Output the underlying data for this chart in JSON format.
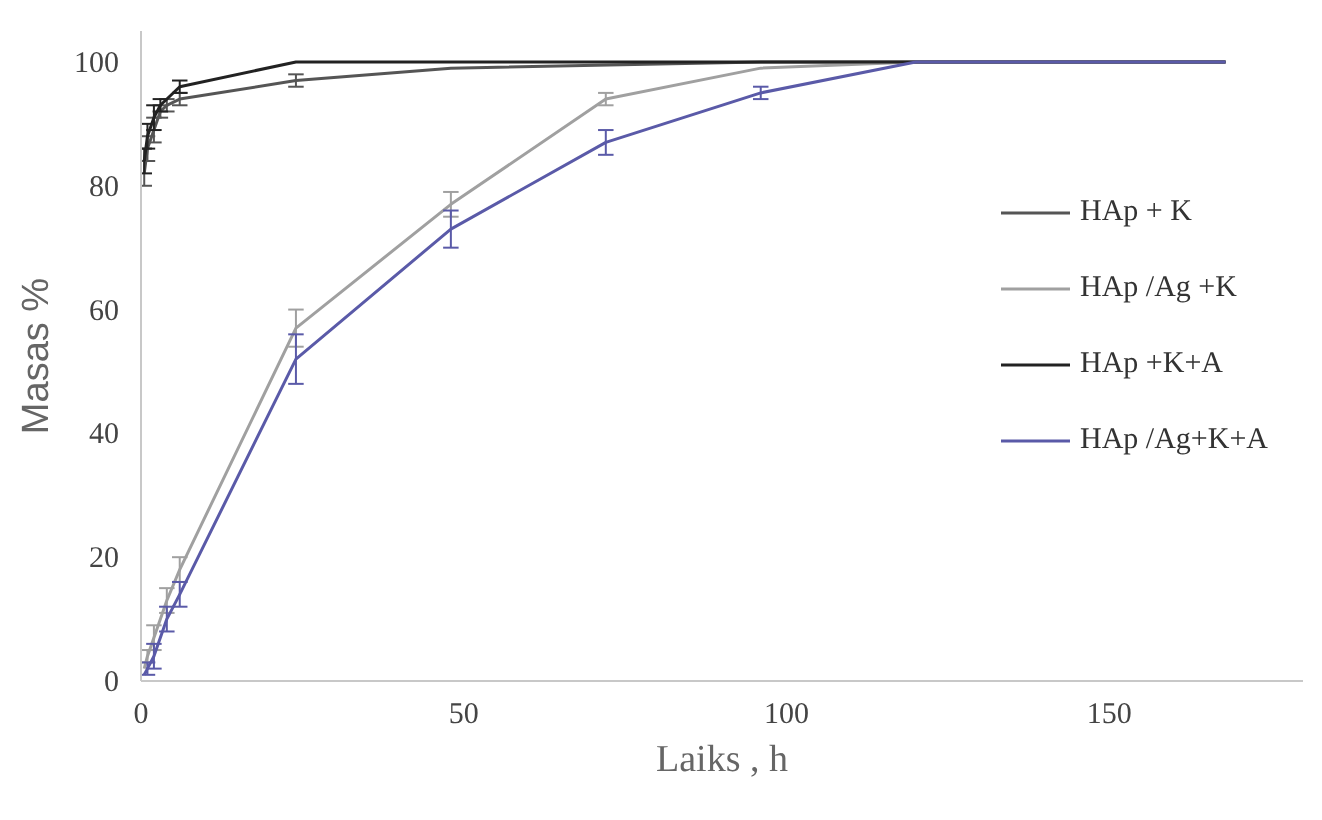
{
  "chart_data": {
    "type": "line",
    "xlabel": "Laiks , h",
    "ylabel": "Masas %",
    "xlim": [
      0,
      180
    ],
    "ylim": [
      0,
      105
    ],
    "xticks": [
      0,
      50,
      100,
      150
    ],
    "yticks": [
      0,
      20,
      40,
      60,
      80,
      100
    ],
    "grid": false,
    "legend": "right",
    "marker": "none",
    "line_style": "solid",
    "series": [
      {
        "name": "HAp + K",
        "color": "#555555",
        "x": [
          0.5,
          1,
          2,
          3,
          4,
          6,
          24,
          48,
          96,
          168
        ],
        "values": [
          82,
          86,
          89,
          92,
          93,
          94,
          97,
          99,
          100,
          100
        ],
        "errors": [
          2,
          2,
          2,
          1,
          1,
          1,
          1,
          null,
          null,
          null
        ]
      },
      {
        "name": "HAp /Ag +K",
        "color": "#a0a0a0",
        "x": [
          0.5,
          1,
          2,
          4,
          6,
          24,
          48,
          72,
          96,
          120,
          168
        ],
        "values": [
          2,
          4,
          7,
          13,
          18,
          57,
          77,
          94,
          99,
          100,
          100
        ],
        "errors": [
          null,
          1,
          2,
          2,
          2,
          3,
          2,
          1,
          null,
          null,
          null
        ]
      },
      {
        "name": "HAp +K+A",
        "color": "#222222",
        "x": [
          0.5,
          1,
          2,
          3,
          6,
          24,
          48,
          96,
          168
        ],
        "values": [
          84,
          88,
          91,
          93,
          96,
          100,
          100,
          100,
          100
        ],
        "errors": [
          2,
          2,
          2,
          1,
          1,
          null,
          null,
          null,
          null
        ]
      },
      {
        "name": "HAp /Ag+K+A",
        "color": "#5a5aa8",
        "x": [
          0.5,
          1,
          2,
          4,
          6,
          24,
          48,
          72,
          96,
          120,
          168
        ],
        "values": [
          1,
          2,
          4,
          10,
          14,
          52,
          73,
          87,
          95,
          100,
          100
        ],
        "errors": [
          null,
          1,
          2,
          2,
          2,
          4,
          3,
          2,
          1,
          null,
          null
        ]
      }
    ]
  }
}
